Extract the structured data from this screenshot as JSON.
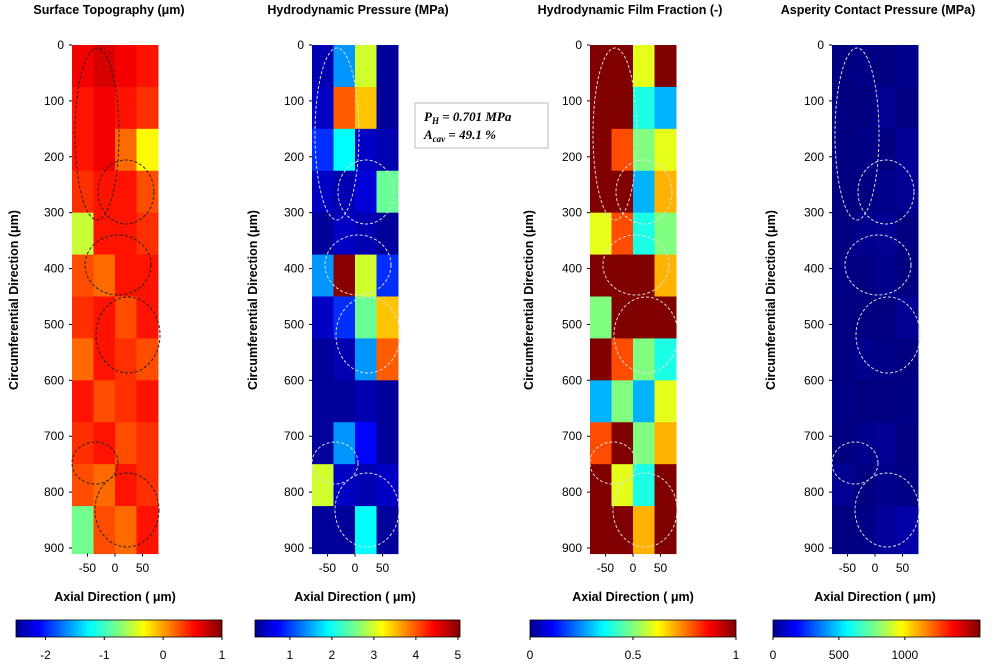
{
  "chart_data": [
    {
      "type": "heatmap",
      "title": "Surface Topography (μm)",
      "xlabel": "Axial Direction ( μm)",
      "ylabel": "Circumferential Direction (μm)",
      "xlim": [
        -78,
        78
      ],
      "ylim": [
        0,
        910
      ],
      "xticks": [
        -50,
        0,
        50
      ],
      "yticks": [
        0,
        100,
        200,
        300,
        400,
        500,
        600,
        700,
        800,
        900
      ],
      "colormap": "jet",
      "xbins": [
        -78,
        -39,
        0,
        39,
        78
      ],
      "ybins": [
        0,
        75,
        150,
        225,
        300,
        375,
        450,
        525,
        600,
        675,
        750,
        825,
        910
      ],
      "z": [
        [
          0.6,
          0.7,
          0.6,
          0.5
        ],
        [
          0.5,
          0.6,
          0.5,
          0.4
        ],
        [
          0.5,
          0.6,
          0.2,
          -0.3
        ],
        [
          0.4,
          0.5,
          0.5,
          0.3
        ],
        [
          -0.5,
          0.5,
          0.5,
          0.4
        ],
        [
          0.3,
          0.2,
          0.5,
          0.5
        ],
        [
          0.4,
          0.5,
          0.3,
          0.5
        ],
        [
          0.2,
          0.5,
          0.4,
          0.3
        ],
        [
          0.5,
          0.3,
          0.4,
          0.5
        ],
        [
          0.4,
          0.5,
          0.3,
          0.4
        ],
        [
          0.3,
          0.2,
          0.5,
          0.4
        ],
        [
          -0.8,
          0.3,
          0.2,
          0.5
        ]
      ],
      "clim": [
        -2.5,
        1.0
      ],
      "cticks": [
        -2,
        -1,
        0,
        1
      ]
    },
    {
      "type": "heatmap",
      "title": "Hydrodynamic Pressure (MPa)",
      "xlabel": "Axial Direction ( μm)",
      "ylabel": "Circumferential Direction (μm)",
      "xlim": [
        -78,
        78
      ],
      "ylim": [
        0,
        910
      ],
      "xticks": [
        -50,
        0,
        50
      ],
      "yticks": [
        0,
        100,
        200,
        300,
        400,
        500,
        600,
        700,
        800,
        900
      ],
      "colormap": "jet",
      "xbins": [
        -78,
        -39,
        0,
        39,
        78
      ],
      "ybins": [
        0,
        75,
        150,
        225,
        300,
        375,
        450,
        525,
        600,
        675,
        750,
        825,
        910
      ],
      "z": [
        [
          0.4,
          1.5,
          3.0,
          0.3
        ],
        [
          0.5,
          4.0,
          3.5,
          0.3
        ],
        [
          1.0,
          2.0,
          0.5,
          0.4
        ],
        [
          0.5,
          0.4,
          0.6,
          2.5
        ],
        [
          0.3,
          0.5,
          0.4,
          0.3
        ],
        [
          1.5,
          5.0,
          3.0,
          1.0
        ],
        [
          0.5,
          1.0,
          2.5,
          3.5
        ],
        [
          0.3,
          0.4,
          1.5,
          4.0
        ],
        [
          0.3,
          0.3,
          0.4,
          0.3
        ],
        [
          0.3,
          1.5,
          0.8,
          0.3
        ],
        [
          3.0,
          0.5,
          0.4,
          0.5
        ],
        [
          0.3,
          0.3,
          2.0,
          0.3
        ]
      ],
      "clim": [
        0.17,
        5.05
      ],
      "cticks": [
        1,
        2,
        3,
        4,
        5
      ],
      "annotations": [
        {
          "symbol": "P",
          "sub": "H",
          "text": " = 0.701 MPa"
        },
        {
          "symbol": "A",
          "sub": "cav",
          "text": " = 49.1 %"
        }
      ]
    },
    {
      "type": "heatmap",
      "title": "Hydrodynamic Film Fraction (-)",
      "xlabel": "Axial Direction ( μm)",
      "ylabel": "Circumferential Direction (μm)",
      "xlim": [
        -78,
        78
      ],
      "ylim": [
        0,
        910
      ],
      "xticks": [
        -50,
        0,
        50
      ],
      "yticks": [
        0,
        100,
        200,
        300,
        400,
        500,
        600,
        700,
        800,
        900
      ],
      "colormap": "jet",
      "xbins": [
        -78,
        -39,
        0,
        39,
        78
      ],
      "ybins": [
        0,
        75,
        150,
        225,
        300,
        375,
        450,
        525,
        600,
        675,
        750,
        825,
        910
      ],
      "z": [
        [
          1,
          1,
          0.6,
          1
        ],
        [
          1,
          1,
          0.4,
          0.3
        ],
        [
          1,
          0.8,
          0.5,
          0.6
        ],
        [
          1,
          1,
          0.3,
          0.7
        ],
        [
          0.6,
          0.8,
          0.4,
          0.5
        ],
        [
          1,
          1,
          1,
          0.7
        ],
        [
          0.5,
          1,
          1,
          1
        ],
        [
          1,
          0.8,
          0.5,
          0.4
        ],
        [
          0.3,
          0.5,
          0.3,
          0.6
        ],
        [
          0.8,
          1,
          0.5,
          0.7
        ],
        [
          1,
          0.6,
          0.4,
          1
        ],
        [
          1,
          1,
          0.7,
          1
        ]
      ],
      "clim": [
        0,
        1
      ],
      "cticks": [
        0,
        0.5,
        1
      ]
    },
    {
      "type": "heatmap",
      "title": "Asperity Contact Pressure (MPa)",
      "xlabel": "Axial Direction ( μm)",
      "ylabel": "Circumferential Direction (μm)",
      "xlim": [
        -78,
        78
      ],
      "ylim": [
        0,
        910
      ],
      "xticks": [
        -50,
        0,
        50
      ],
      "yticks": [
        0,
        100,
        200,
        300,
        400,
        500,
        600,
        700,
        800,
        900
      ],
      "colormap": "jet",
      "xbins": [
        -78,
        -39,
        0,
        39,
        78
      ],
      "ybins": [
        0,
        75,
        150,
        225,
        300,
        375,
        450,
        525,
        600,
        675,
        750,
        825,
        910
      ],
      "z": [
        [
          0,
          10,
          0,
          20
        ],
        [
          0,
          0,
          30,
          0
        ],
        [
          0,
          10,
          0,
          40
        ],
        [
          0,
          0,
          20,
          30
        ],
        [
          0,
          20,
          30,
          0
        ],
        [
          10,
          0,
          20,
          0
        ],
        [
          0,
          0,
          0,
          30
        ],
        [
          0,
          20,
          10,
          0
        ],
        [
          10,
          0,
          0,
          10
        ],
        [
          0,
          20,
          30,
          0
        ],
        [
          30,
          0,
          20,
          10
        ],
        [
          0,
          10,
          40,
          60
        ]
      ],
      "clim": [
        0,
        1570
      ],
      "cticks": [
        0,
        500,
        1000
      ]
    }
  ]
}
